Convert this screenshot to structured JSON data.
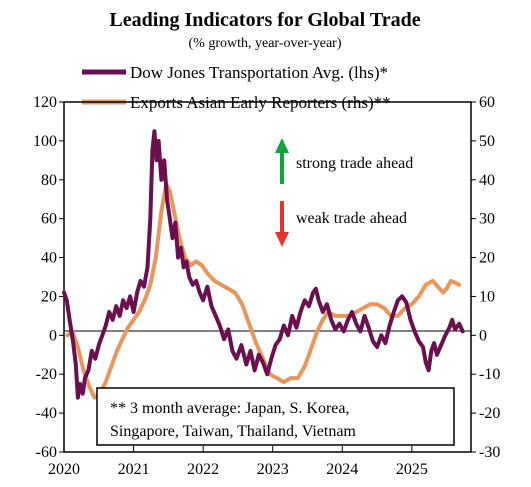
{
  "chart_data": {
    "type": "line",
    "title": "Leading Indicators for Global Trade",
    "subtitle": "(% growth, year-over-year)",
    "x_axis": {
      "range": [
        2020.0,
        2025.85
      ],
      "ticks": [
        2020,
        2021,
        2022,
        2023,
        2024,
        2025
      ],
      "tick_labels": [
        "2020",
        "2021",
        "2022",
        "2023",
        "2024",
        "2025"
      ]
    },
    "y_axis_left": {
      "range": [
        -60,
        120
      ],
      "ticks": [
        -60,
        -40,
        -20,
        0,
        20,
        40,
        60,
        80,
        100,
        120
      ]
    },
    "y_axis_right": {
      "range": [
        -30,
        60
      ],
      "ticks": [
        -30,
        -20,
        -10,
        0,
        10,
        20,
        30,
        40,
        50,
        60
      ]
    },
    "grid": false,
    "legend_position": "top",
    "series": [
      {
        "name": "Dow Jones Transportation Avg. (lhs)*",
        "axis": "left",
        "color": "#6b0f4f",
        "points": [
          [
            2020.0,
            22
          ],
          [
            2020.04,
            18
          ],
          [
            2020.08,
            8
          ],
          [
            2020.13,
            -3
          ],
          [
            2020.17,
            -15
          ],
          [
            2020.2,
            -32
          ],
          [
            2020.23,
            -25
          ],
          [
            2020.27,
            -30
          ],
          [
            2020.3,
            -22
          ],
          [
            2020.35,
            -18
          ],
          [
            2020.4,
            -8
          ],
          [
            2020.45,
            -12
          ],
          [
            2020.5,
            -5
          ],
          [
            2020.55,
            0
          ],
          [
            2020.6,
            5
          ],
          [
            2020.65,
            12
          ],
          [
            2020.7,
            8
          ],
          [
            2020.75,
            15
          ],
          [
            2020.8,
            10
          ],
          [
            2020.85,
            18
          ],
          [
            2020.9,
            14
          ],
          [
            2020.95,
            20
          ],
          [
            2021.0,
            12
          ],
          [
            2021.05,
            22
          ],
          [
            2021.1,
            28
          ],
          [
            2021.15,
            25
          ],
          [
            2021.2,
            35
          ],
          [
            2021.24,
            60
          ],
          [
            2021.27,
            95
          ],
          [
            2021.3,
            105
          ],
          [
            2021.33,
            90
          ],
          [
            2021.36,
            100
          ],
          [
            2021.4,
            80
          ],
          [
            2021.44,
            90
          ],
          [
            2021.48,
            70
          ],
          [
            2021.52,
            60
          ],
          [
            2021.56,
            50
          ],
          [
            2021.6,
            58
          ],
          [
            2021.64,
            40
          ],
          [
            2021.68,
            45
          ],
          [
            2021.72,
            35
          ],
          [
            2021.76,
            38
          ],
          [
            2021.8,
            30
          ],
          [
            2021.85,
            26
          ],
          [
            2021.9,
            28
          ],
          [
            2021.95,
            22
          ],
          [
            2022.0,
            18
          ],
          [
            2022.06,
            25
          ],
          [
            2022.12,
            15
          ],
          [
            2022.18,
            10
          ],
          [
            2022.24,
            5
          ],
          [
            2022.3,
            -2
          ],
          [
            2022.36,
            3
          ],
          [
            2022.42,
            -8
          ],
          [
            2022.48,
            -12
          ],
          [
            2022.55,
            -5
          ],
          [
            2022.62,
            -15
          ],
          [
            2022.68,
            -8
          ],
          [
            2022.74,
            -18
          ],
          [
            2022.8,
            -10
          ],
          [
            2022.86,
            -14
          ],
          [
            2022.92,
            -20
          ],
          [
            2022.98,
            -12
          ],
          [
            2023.04,
            -5
          ],
          [
            2023.1,
            -2
          ],
          [
            2023.16,
            5
          ],
          [
            2023.22,
            0
          ],
          [
            2023.28,
            10
          ],
          [
            2023.34,
            4
          ],
          [
            2023.4,
            12
          ],
          [
            2023.46,
            18
          ],
          [
            2023.52,
            15
          ],
          [
            2023.58,
            22
          ],
          [
            2023.62,
            24
          ],
          [
            2023.66,
            18
          ],
          [
            2023.72,
            12
          ],
          [
            2023.78,
            16
          ],
          [
            2023.84,
            8
          ],
          [
            2023.9,
            3
          ],
          [
            2023.96,
            6
          ],
          [
            2024.02,
            2
          ],
          [
            2024.08,
            8
          ],
          [
            2024.14,
            12
          ],
          [
            2024.2,
            6
          ],
          [
            2024.26,
            2
          ],
          [
            2024.32,
            10
          ],
          [
            2024.38,
            4
          ],
          [
            2024.44,
            -3
          ],
          [
            2024.5,
            -6
          ],
          [
            2024.56,
            0
          ],
          [
            2024.62,
            -4
          ],
          [
            2024.68,
            5
          ],
          [
            2024.74,
            12
          ],
          [
            2024.8,
            18
          ],
          [
            2024.86,
            20
          ],
          [
            2024.92,
            17
          ],
          [
            2024.98,
            8
          ],
          [
            2025.04,
            2
          ],
          [
            2025.1,
            -3
          ],
          [
            2025.16,
            -6
          ],
          [
            2025.2,
            -14
          ],
          [
            2025.24,
            -18
          ],
          [
            2025.28,
            -8
          ],
          [
            2025.32,
            -4
          ],
          [
            2025.36,
            -10
          ],
          [
            2025.42,
            -5
          ],
          [
            2025.48,
            0
          ],
          [
            2025.54,
            4
          ],
          [
            2025.58,
            8
          ],
          [
            2025.62,
            3
          ],
          [
            2025.68,
            6
          ],
          [
            2025.73,
            2
          ]
        ]
      },
      {
        "name": "Exports Asian Early Reporters (rhs)**",
        "axis": "right",
        "color": "#e8965a",
        "points": [
          [
            2020.05,
            0
          ],
          [
            2020.12,
            1
          ],
          [
            2020.2,
            -3
          ],
          [
            2020.28,
            -9
          ],
          [
            2020.36,
            -13
          ],
          [
            2020.44,
            -16
          ],
          [
            2020.52,
            -15
          ],
          [
            2020.6,
            -12
          ],
          [
            2020.68,
            -8
          ],
          [
            2020.76,
            -4
          ],
          [
            2020.84,
            -1
          ],
          [
            2020.92,
            2
          ],
          [
            2021.0,
            4
          ],
          [
            2021.08,
            6
          ],
          [
            2021.16,
            9
          ],
          [
            2021.24,
            13
          ],
          [
            2021.32,
            20
          ],
          [
            2021.4,
            32
          ],
          [
            2021.47,
            39
          ],
          [
            2021.52,
            37
          ],
          [
            2021.58,
            32
          ],
          [
            2021.66,
            25
          ],
          [
            2021.74,
            20
          ],
          [
            2021.82,
            18
          ],
          [
            2021.9,
            19
          ],
          [
            2021.98,
            18
          ],
          [
            2022.06,
            16
          ],
          [
            2022.16,
            14
          ],
          [
            2022.26,
            13
          ],
          [
            2022.36,
            12
          ],
          [
            2022.46,
            11
          ],
          [
            2022.56,
            8
          ],
          [
            2022.66,
            3
          ],
          [
            2022.76,
            -2
          ],
          [
            2022.86,
            -6
          ],
          [
            2022.96,
            -10
          ],
          [
            2023.06,
            -11
          ],
          [
            2023.16,
            -12
          ],
          [
            2023.26,
            -11
          ],
          [
            2023.36,
            -11
          ],
          [
            2023.46,
            -8
          ],
          [
            2023.56,
            -3
          ],
          [
            2023.64,
            1
          ],
          [
            2023.72,
            4
          ],
          [
            2023.8,
            6
          ],
          [
            2023.9,
            5
          ],
          [
            2024.0,
            5
          ],
          [
            2024.1,
            5
          ],
          [
            2024.2,
            6
          ],
          [
            2024.3,
            7
          ],
          [
            2024.4,
            8
          ],
          [
            2024.5,
            8
          ],
          [
            2024.6,
            7
          ],
          [
            2024.7,
            5
          ],
          [
            2024.8,
            5
          ],
          [
            2024.9,
            7
          ],
          [
            2025.0,
            8
          ],
          [
            2025.1,
            10
          ],
          [
            2025.2,
            13
          ],
          [
            2025.3,
            14
          ],
          [
            2025.4,
            12
          ],
          [
            2025.45,
            11
          ],
          [
            2025.5,
            12
          ],
          [
            2025.56,
            14
          ],
          [
            2025.62,
            13.5
          ],
          [
            2025.68,
            13
          ]
        ]
      }
    ],
    "annotations": [
      {
        "text": "strong trade ahead",
        "arrow": "up",
        "color": "#12a33a"
      },
      {
        "text": "weak trade ahead",
        "arrow": "down",
        "color": "#e2342a"
      }
    ],
    "footnote": {
      "line1": "** 3 month average: Japan, S. Korea,",
      "line2": "Singapore, Taiwan, Thailand, Vietnam"
    }
  }
}
